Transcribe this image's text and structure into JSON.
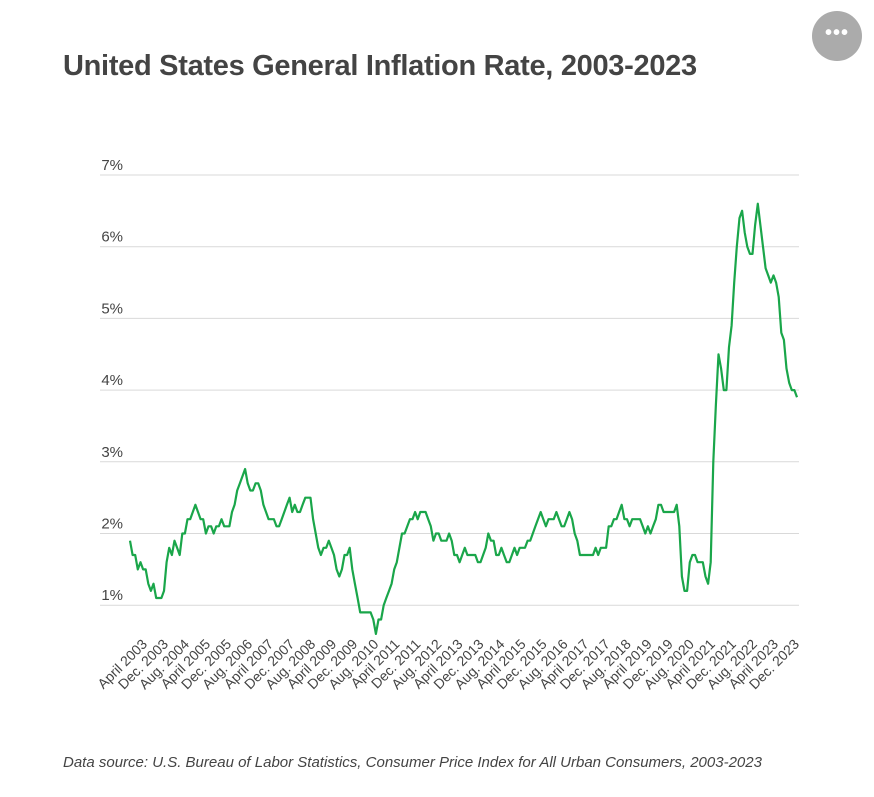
{
  "header": {
    "title": "United States General Inflation Rate, 2003-2023",
    "menu_icon": "more-horizontal-icon",
    "menu_glyph": "•••"
  },
  "footer": {
    "source": "Data source: U.S. Bureau of Labor Statistics, Consumer Price Index for All Urban Consumers, 2003-2023"
  },
  "colors": {
    "line": "#1aa64a",
    "grid": "#d9d9d9",
    "text": "#444444",
    "menu_button": "#ababab"
  },
  "chart_data": {
    "type": "line",
    "title": "United States General Inflation Rate, 2003-2023",
    "xlabel": "",
    "ylabel": "",
    "y_unit": "%",
    "ylim": [
      0.4,
      7
    ],
    "yticks": [
      1,
      2,
      3,
      4,
      5,
      6,
      7
    ],
    "ytick_labels": [
      "1%",
      "2%",
      "3%",
      "4%",
      "5%",
      "6%",
      "7%"
    ],
    "grid": true,
    "legend": "none",
    "x_start": "April 2003",
    "x_end": "Dec. 2023",
    "xtick_labels": [
      "April 2003",
      "Dec. 2003",
      "Aug. 2004",
      "April 2005",
      "Dec. 2005",
      "Aug. 2006",
      "April 2007",
      "Dec. 2007",
      "Aug. 2008",
      "April 2009",
      "Dec. 2009",
      "Aug. 2010",
      "April 2011",
      "Dec. 2011",
      "Aug. 2012",
      "April 2013",
      "Dec. 2013",
      "Aug. 2014",
      "April 2015",
      "Dec. 2015",
      "Aug. 2016",
      "April 2017",
      "Dec. 2017",
      "Aug. 2018",
      "April 2019",
      "Dec. 2019",
      "Aug. 2020",
      "April 2021",
      "Dec. 2021",
      "Aug. 2022",
      "April 2023",
      "Dec. 2023"
    ],
    "series": [
      {
        "values": [
          1.9,
          1.7,
          1.7,
          1.5,
          1.6,
          1.5,
          1.5,
          1.3,
          1.2,
          1.3,
          1.1,
          1.1,
          1.1,
          1.2,
          1.6,
          1.8,
          1.7,
          1.9,
          1.8,
          1.7,
          2.0,
          2.0,
          2.2,
          2.2,
          2.3,
          2.4,
          2.3,
          2.2,
          2.2,
          2.0,
          2.1,
          2.1,
          2.0,
          2.1,
          2.1,
          2.2,
          2.1,
          2.1,
          2.1,
          2.3,
          2.4,
          2.6,
          2.7,
          2.8,
          2.9,
          2.7,
          2.6,
          2.6,
          2.7,
          2.7,
          2.6,
          2.4,
          2.3,
          2.2,
          2.2,
          2.2,
          2.1,
          2.1,
          2.2,
          2.3,
          2.4,
          2.5,
          2.3,
          2.4,
          2.3,
          2.3,
          2.4,
          2.5,
          2.5,
          2.5,
          2.2,
          2.0,
          1.8,
          1.7,
          1.8,
          1.8,
          1.9,
          1.8,
          1.7,
          1.5,
          1.4,
          1.5,
          1.7,
          1.7,
          1.8,
          1.5,
          1.3,
          1.1,
          0.9,
          0.9,
          0.9,
          0.9,
          0.9,
          0.8,
          0.6,
          0.8,
          0.8,
          1.0,
          1.1,
          1.2,
          1.3,
          1.5,
          1.6,
          1.8,
          2.0,
          2.0,
          2.1,
          2.2,
          2.2,
          2.3,
          2.2,
          2.3,
          2.3,
          2.3,
          2.2,
          2.1,
          1.9,
          2.0,
          2.0,
          1.9,
          1.9,
          1.9,
          2.0,
          1.9,
          1.7,
          1.7,
          1.6,
          1.7,
          1.8,
          1.7,
          1.7,
          1.7,
          1.7,
          1.6,
          1.6,
          1.7,
          1.8,
          2.0,
          1.9,
          1.9,
          1.7,
          1.7,
          1.8,
          1.7,
          1.6,
          1.6,
          1.7,
          1.8,
          1.7,
          1.8,
          1.8,
          1.8,
          1.9,
          1.9,
          2.0,
          2.1,
          2.2,
          2.3,
          2.2,
          2.1,
          2.2,
          2.2,
          2.2,
          2.3,
          2.2,
          2.1,
          2.1,
          2.2,
          2.3,
          2.2,
          2.0,
          1.9,
          1.7,
          1.7,
          1.7,
          1.7,
          1.7,
          1.7,
          1.8,
          1.7,
          1.8,
          1.8,
          1.8,
          2.1,
          2.1,
          2.2,
          2.2,
          2.3,
          2.4,
          2.2,
          2.2,
          2.1,
          2.2,
          2.2,
          2.2,
          2.2,
          2.1,
          2.0,
          2.1,
          2.0,
          2.1,
          2.2,
          2.4,
          2.4,
          2.3,
          2.3,
          2.3,
          2.3,
          2.3,
          2.4,
          2.1,
          1.4,
          1.2,
          1.2,
          1.6,
          1.7,
          1.7,
          1.6,
          1.6,
          1.6,
          1.4,
          1.3,
          1.6,
          3.0,
          3.8,
          4.5,
          4.3,
          4.0,
          4.0,
          4.6,
          4.9,
          5.5,
          6.0,
          6.4,
          6.5,
          6.2,
          6.0,
          5.9,
          5.9,
          6.3,
          6.6,
          6.3,
          6.0,
          5.7,
          5.6,
          5.5,
          5.6,
          5.5,
          5.3,
          4.8,
          4.7,
          4.3,
          4.1,
          4.0,
          4.0,
          3.9
        ]
      }
    ]
  }
}
